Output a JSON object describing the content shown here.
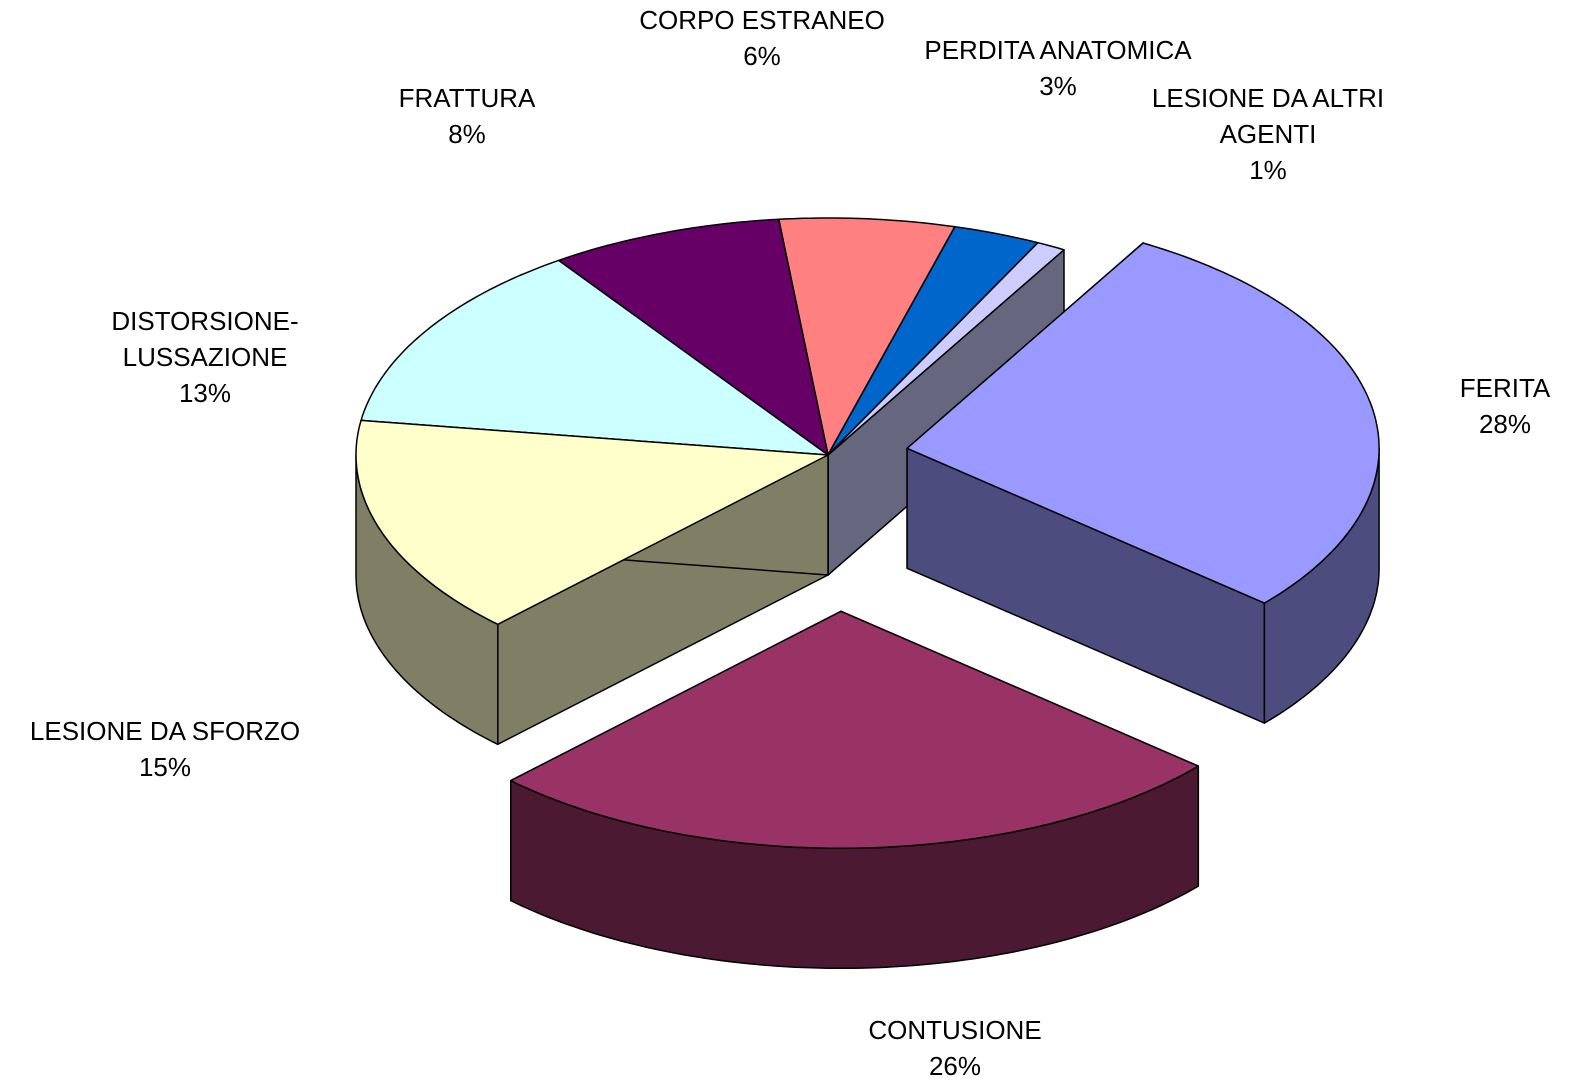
{
  "chart_data": {
    "type": "pie3d",
    "categories": [
      "FERITA",
      "CONTUSIONE",
      "LESIONE DA SFORZO",
      "DISTORSIONE-LUSSAZIONE",
      "FRATTURA",
      "CORPO ESTRANEO",
      "PERDITA ANATOMICA",
      "LESIONE DA ALTRI AGENTI"
    ],
    "values": [
      28,
      26,
      15,
      13,
      8,
      6,
      3,
      1
    ],
    "value_labels": [
      "28%",
      "26%",
      "15%",
      "13%",
      "8%",
      "6%",
      "3%",
      "1%"
    ],
    "colors": [
      "#9999FF",
      "#993366",
      "#FFFFCC",
      "#CCFFFF",
      "#660066",
      "#FF8080",
      "#0066CC",
      "#CCCCFF"
    ]
  }
}
